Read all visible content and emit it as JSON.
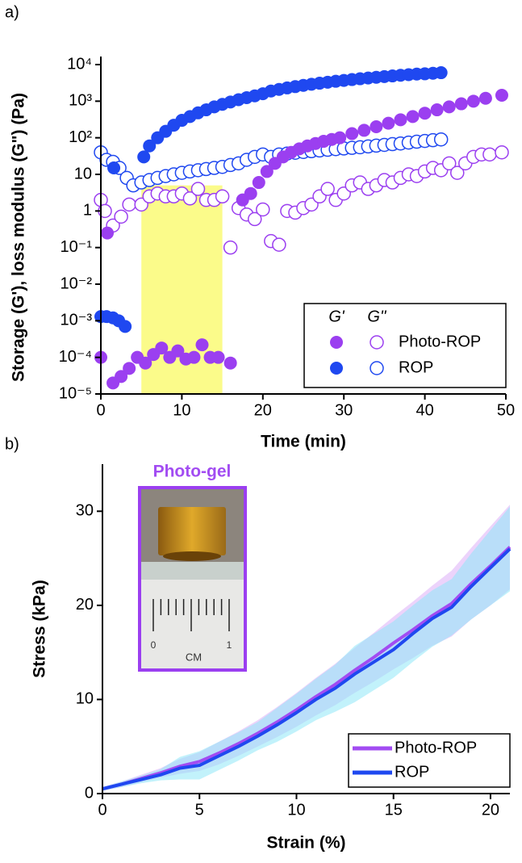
{
  "chart_data": [
    {
      "type": "scatter",
      "label": "a)",
      "x_label": "Time (min)",
      "y_label": "Storage (G'), loss modulus (G\") (Pa)",
      "xlim": [
        0,
        50
      ],
      "xticks": [
        0,
        10,
        20,
        30,
        40,
        50
      ],
      "ylim": [
        1e-05,
        10000
      ],
      "log_y": true,
      "yticks": [
        {
          "value": 1e-05,
          "label": "10⁻⁵"
        },
        {
          "value": 0.0001,
          "label": "10⁻⁴"
        },
        {
          "value": 0.001,
          "label": "10⁻³"
        },
        {
          "value": 0.01,
          "label": "10⁻²"
        },
        {
          "value": 0.1,
          "label": "10⁻¹"
        },
        1,
        10,
        {
          "value": 100,
          "label": "10²"
        },
        {
          "value": 1000,
          "label": "10³"
        },
        {
          "value": 10000,
          "label": "10⁴"
        }
      ],
      "shaded_region": {
        "x": [
          5,
          15
        ],
        "y": [
          1e-05,
          5
        ],
        "color": "#fbfb8a"
      },
      "legend_headers": [
        "G'",
        "G''"
      ],
      "legend_position": "lower right",
      "series": [
        {
          "name": "Photo-ROP",
          "color": "#9b3ff0",
          "storage_x": [
            0,
            0.8,
            1.5,
            2.5,
            3.5,
            4.5,
            5.5,
            6.5,
            7.5,
            8.5,
            9.5,
            10.5,
            11.5,
            12.5,
            13.5,
            14.5,
            16,
            17.5,
            18.5,
            19.5,
            20.5,
            21.5,
            22.5,
            23.5,
            24.5,
            25.5,
            26.5,
            27.5,
            28.5,
            29.5,
            31,
            32.5,
            34,
            35.5,
            37,
            38.5,
            40,
            41.5,
            43,
            44.5,
            46,
            47.5,
            49.5
          ],
          "storage": [
            0.0001,
            0.25,
            2e-05,
            3e-05,
            5e-05,
            0.0001,
            7e-05,
            0.00012,
            0.00018,
            0.0001,
            0.00015,
            9e-05,
            0.0001,
            0.00022,
            0.0001,
            0.0001,
            7e-05,
            2,
            3,
            6,
            12,
            20,
            30,
            40,
            50,
            60,
            70,
            80,
            90,
            100,
            130,
            160,
            200,
            250,
            310,
            380,
            470,
            580,
            700,
            850,
            1000,
            1200,
            1450
          ],
          "loss_x": [
            0,
            0.5,
            1.5,
            2.5,
            3.5,
            5,
            6,
            7,
            8,
            9,
            10,
            11,
            12,
            13,
            14,
            15,
            16,
            17,
            18,
            19,
            20,
            21,
            22,
            23,
            24,
            25,
            26,
            27,
            28,
            29,
            30,
            31,
            32,
            33,
            34,
            35,
            36,
            37,
            38,
            39,
            40,
            41,
            42,
            43,
            44,
            45,
            46,
            47,
            48,
            49.5
          ],
          "loss": [
            2,
            1,
            0.4,
            0.7,
            1.5,
            1.5,
            2.5,
            3,
            2.5,
            2.5,
            3,
            2.2,
            4,
            2,
            2,
            2.5,
            0.1,
            1.2,
            0.8,
            0.6,
            1.1,
            0.15,
            0.12,
            1,
            0.9,
            1.2,
            1.5,
            2.5,
            4,
            2,
            3,
            5,
            6,
            4,
            5,
            7,
            6,
            8,
            10,
            9,
            12,
            15,
            13,
            20,
            11,
            20,
            30,
            35,
            35,
            40
          ]
        },
        {
          "name": "ROP",
          "color": "#1f48f0",
          "storage_x": [
            0,
            0.7,
            1.5,
            1.6,
            2.2,
            3,
            5.3,
            6,
            7,
            8,
            9,
            10,
            11,
            12,
            13,
            14,
            15,
            16,
            17,
            18,
            19,
            20,
            21,
            22,
            23,
            24,
            25,
            26,
            27,
            28,
            29,
            30,
            31,
            32,
            33,
            34,
            35,
            36,
            37,
            38,
            39,
            40,
            41,
            42
          ],
          "storage": [
            0.0013,
            0.0013,
            0.0012,
            15,
            0.001,
            0.0007,
            30,
            60,
            100,
            150,
            220,
            300,
            380,
            480,
            580,
            700,
            820,
            950,
            1100,
            1250,
            1400,
            1600,
            1900,
            2100,
            2300,
            2500,
            2700,
            2900,
            3100,
            3300,
            3500,
            3700,
            3900,
            4100,
            4300,
            4500,
            4700,
            4900,
            5100,
            5300,
            5500,
            5600,
            5800,
            6000
          ],
          "loss_x": [
            0,
            0.7,
            1.5,
            2.3,
            3.2,
            4,
            5,
            6,
            7,
            8,
            9,
            10,
            11,
            12,
            13,
            14,
            15,
            16,
            17,
            18,
            19,
            20,
            21,
            22,
            23,
            24,
            25,
            26,
            27,
            28,
            29,
            30,
            31,
            32,
            33,
            34,
            35,
            36,
            37,
            38,
            39,
            40,
            41,
            42
          ],
          "loss": [
            40,
            25,
            22,
            15,
            8,
            5,
            6,
            7,
            8,
            9,
            10,
            11,
            12,
            13,
            14,
            15,
            16,
            18,
            20,
            25,
            30,
            35,
            30,
            35,
            37,
            39,
            41,
            43,
            45,
            47,
            49,
            51,
            53,
            55,
            58,
            61,
            64,
            67,
            70,
            74,
            78,
            82,
            86,
            90
          ]
        }
      ]
    },
    {
      "type": "line",
      "label": "b)",
      "x_label": "Strain (%)",
      "y_label": "Stress (kPa)",
      "xlim": [
        0,
        21
      ],
      "xticks": [
        0,
        5,
        10,
        15,
        20
      ],
      "ylim": [
        0,
        35
      ],
      "yticks": [
        0,
        10,
        20,
        30
      ],
      "legend_position": "lower right",
      "inset": {
        "title": "Photo-gel",
        "ruler_labels": [
          "0",
          "CM",
          "1"
        ]
      },
      "x": [
        0,
        1,
        2,
        3,
        4,
        5,
        6,
        7,
        8,
        9,
        10,
        11,
        12,
        13,
        14,
        15,
        16,
        17,
        18,
        19,
        20,
        21
      ],
      "series": [
        {
          "name": "Photo-ROP",
          "color": "#a24cf2",
          "band_color": "#dcaef8",
          "values": [
            0.5,
            1,
            1.6,
            2.2,
            2.9,
            3.4,
            4.3,
            5.3,
            6.4,
            7.6,
            8.9,
            10.3,
            11.6,
            13.1,
            14.5,
            16,
            17.4,
            18.9,
            20.2,
            22.3,
            24.2,
            26.2
          ],
          "errors": [
            0.2,
            0.3,
            0.4,
            0.5,
            0.8,
            1,
            1.2,
            1.3,
            1.4,
            1.6,
            1.8,
            2,
            2.2,
            2.4,
            2.6,
            2.8,
            3,
            3.2,
            3.5,
            3.8,
            4.2,
            4.5
          ]
        },
        {
          "name": "ROP",
          "color": "#1f48f0",
          "band_color": "#8fe8f8",
          "values": [
            0.5,
            1,
            1.5,
            2,
            2.7,
            3,
            4,
            5,
            6.1,
            7.3,
            8.6,
            10,
            11.2,
            12.7,
            14,
            15.3,
            17,
            18.6,
            19.8,
            22,
            24,
            26
          ],
          "errors": [
            0.2,
            0.3,
            0.4,
            0.6,
            1.2,
            1.5,
            1.5,
            1.5,
            1.5,
            1.8,
            2,
            2.2,
            2.5,
            3,
            3,
            3,
            3,
            3,
            3,
            3.5,
            4,
            4.5
          ]
        }
      ]
    }
  ]
}
